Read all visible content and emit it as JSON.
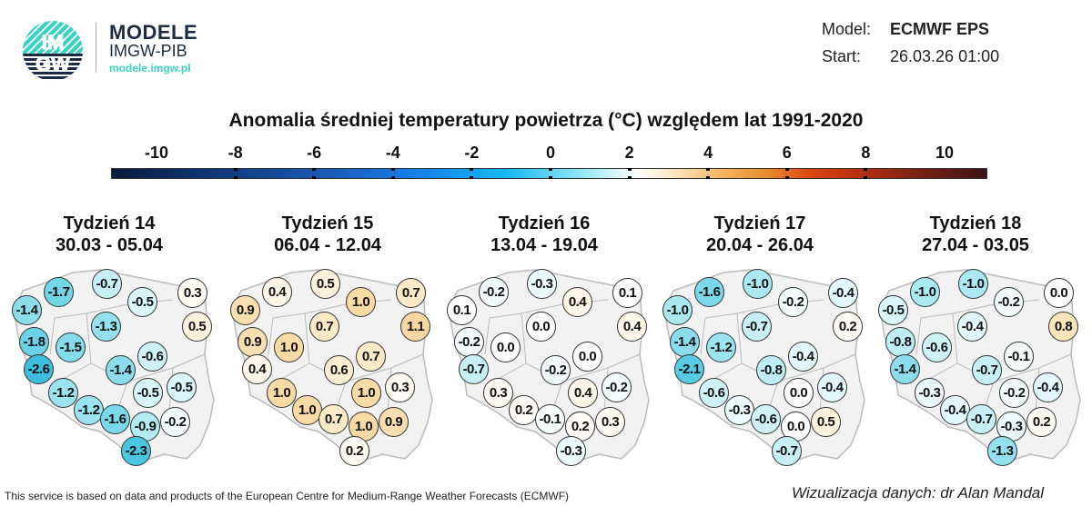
{
  "brand": {
    "logo_text_top": "IM",
    "logo_text_bottom": "GW",
    "title": "MODELE",
    "subtitle": "IMGW-PIB",
    "url": "modele.imgw.pl",
    "accent": "#3ad3c3",
    "dark": "#1d2a44"
  },
  "info": {
    "model_label": "Model:",
    "model_value": "ECMWF EPS",
    "start_label": "Start:",
    "start_value": "26.03.26 01:00"
  },
  "title": "Anomalia średniej temperatury powietrza (°C) względem lat 1991-2020",
  "colorbar": {
    "ticks": [
      "-10",
      "-8",
      "-6",
      "-4",
      "-2",
      "0",
      "2",
      "4",
      "6",
      "8",
      "10"
    ],
    "range": [
      -11,
      11
    ]
  },
  "weeks": [
    {
      "label": "Tydzień 14",
      "dates": "30.03 - 05.04",
      "values": [
        "-1.7",
        "-0.7",
        "-1.4",
        "-0.5",
        "0.3",
        "0.5",
        "-1.3",
        "-1.8",
        "-1.5",
        "-0.6",
        "-2.6",
        "-1.4",
        "-1.2",
        "-0.5",
        "-0.5",
        "-1.2",
        "-1.6",
        "-0.9",
        "-0.2",
        "-2.3"
      ]
    },
    {
      "label": "Tydzień 15",
      "dates": "06.04 - 12.04",
      "values": [
        "0.4",
        "0.5",
        "0.9",
        "1.0",
        "0.7",
        "1.1",
        "0.7",
        "0.9",
        "1.0",
        "0.7",
        "0.4",
        "0.6",
        "1.0",
        "1.0",
        "0.3",
        "1.0",
        "0.7",
        "1.0",
        "0.9",
        "0.2"
      ]
    },
    {
      "label": "Tydzień 16",
      "dates": "13.04 - 19.04",
      "values": [
        "-0.2",
        "-0.3",
        "0.1",
        "0.4",
        "0.1",
        "0.4",
        "0.0",
        "-0.2",
        "0.0",
        "0.0",
        "-0.7",
        "-0.2",
        "0.3",
        "0.4",
        "-0.2",
        "0.2",
        "-0.1",
        "0.2",
        "0.3",
        "-0.3"
      ]
    },
    {
      "label": "Tydzień 17",
      "dates": "20.04 - 26.04",
      "values": [
        "-1.6",
        "-1.0",
        "-1.0",
        "-0.2",
        "-0.4",
        "0.2",
        "-0.7",
        "-1.4",
        "-1.2",
        "-0.4",
        "-2.1",
        "-0.8",
        "-0.6",
        "0.0",
        "-0.4",
        "-0.3",
        "-0.6",
        "0.0",
        "0.5",
        "-0.7"
      ]
    },
    {
      "label": "Tydzień 18",
      "dates": "27.04 - 03.05",
      "values": [
        "-1.0",
        "-1.0",
        "-0.5",
        "-0.2",
        "0.0",
        "0.8",
        "-0.4",
        "-0.8",
        "-0.6",
        "-0.1",
        "-1.4",
        "-0.7",
        "-0.3",
        "-0.2",
        "-0.4",
        "-0.4",
        "-0.7",
        "-0.3",
        "0.2",
        "-1.3"
      ]
    }
  ],
  "footer": {
    "left": "This service is based on data and products of the European Centre for Medium-Range Weather Forecasts (ECMWF)",
    "right": "Wizualizacja danych: dr Alan Mandal"
  }
}
